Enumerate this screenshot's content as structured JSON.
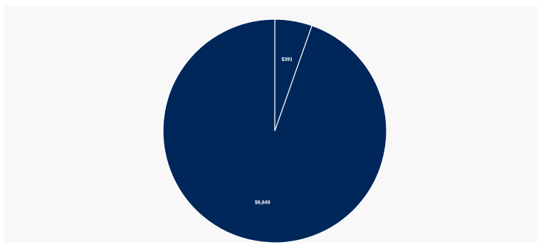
{
  "chart_data": {
    "type": "pie",
    "categories": [
      null,
      null
    ],
    "values": [
      391,
      6849
    ],
    "value_labels": [
      "$391",
      "$6,849"
    ],
    "colors": [
      "#00275a",
      "#00275a"
    ],
    "start_angle": 0,
    "direction": "clockwise"
  }
}
